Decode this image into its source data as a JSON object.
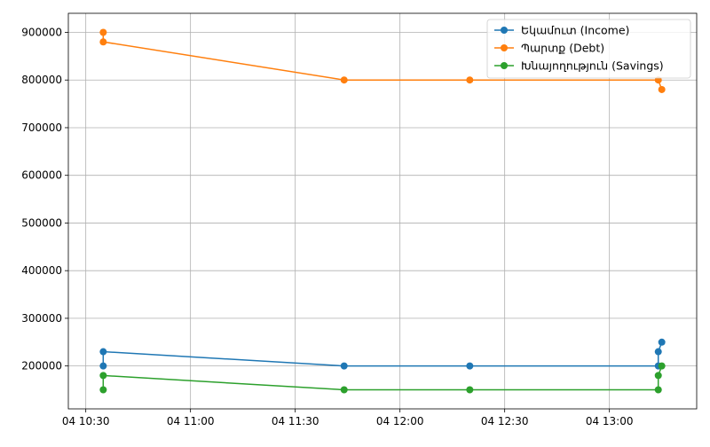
{
  "chart_data": {
    "type": "line",
    "title": "",
    "xlabel": "",
    "ylabel": "",
    "grid": true,
    "legend_position": "top-right",
    "xlim": [
      "04 10:25",
      "04 13:25"
    ],
    "ylim": [
      110000,
      940000
    ],
    "x_ticks": [
      "04 10:30",
      "04 11:00",
      "04 11:30",
      "04 12:00",
      "04 12:30",
      "04 13:00"
    ],
    "y_ticks": [
      "200000",
      "300000",
      "400000",
      "500000",
      "600000",
      "700000",
      "800000",
      "900000"
    ],
    "series": [
      {
        "name": "Եկամուտ (Income)",
        "color": "#1f77b4",
        "points": [
          {
            "x": "04 10:35",
            "y": 200000
          },
          {
            "x": "04 10:35",
            "y": 230000
          },
          {
            "x": "04 11:44",
            "y": 200000
          },
          {
            "x": "04 12:20",
            "y": 200000
          },
          {
            "x": "04 13:14",
            "y": 200000
          },
          {
            "x": "04 13:14",
            "y": 230000
          },
          {
            "x": "04 13:15",
            "y": 250000
          }
        ]
      },
      {
        "name": "Պարտք (Debt)",
        "color": "#ff7f0e",
        "points": [
          {
            "x": "04 10:35",
            "y": 900000
          },
          {
            "x": "04 10:35",
            "y": 880000
          },
          {
            "x": "04 11:44",
            "y": 800000
          },
          {
            "x": "04 12:20",
            "y": 800000
          },
          {
            "x": "04 13:14",
            "y": 800000
          },
          {
            "x": "04 13:15",
            "y": 780000
          }
        ]
      },
      {
        "name": "Խնայողություն (Savings)",
        "color": "#2ca02c",
        "points": [
          {
            "x": "04 10:35",
            "y": 150000
          },
          {
            "x": "04 10:35",
            "y": 180000
          },
          {
            "x": "04 11:44",
            "y": 150000
          },
          {
            "x": "04 12:20",
            "y": 150000
          },
          {
            "x": "04 13:14",
            "y": 150000
          },
          {
            "x": "04 13:14",
            "y": 180000
          },
          {
            "x": "04 13:15",
            "y": 200000
          }
        ]
      }
    ]
  }
}
